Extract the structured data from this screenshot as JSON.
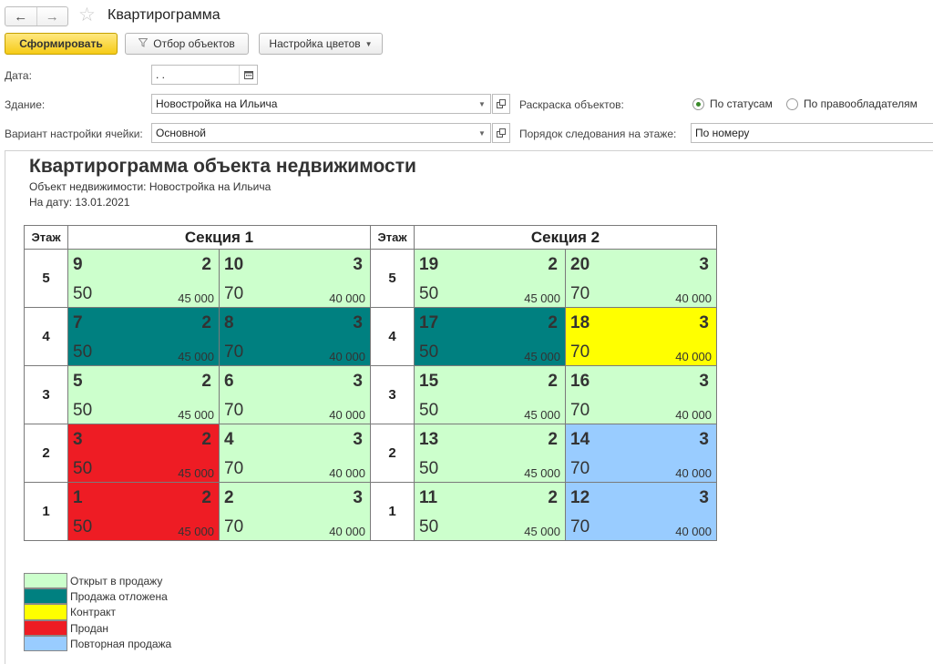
{
  "window": {
    "title": "Квартирограмма",
    "back_icon": "←",
    "forward_icon": "→",
    "favorite_icon": "☆"
  },
  "toolbar": {
    "generate_label": "Сформировать",
    "filter_label": "Отбор объектов",
    "colors_label": "Настройка цветов"
  },
  "form": {
    "date_label": "Дата:",
    "date_value": " .  .",
    "building_label": "Здание:",
    "building_value": "Новостройка на Ильича",
    "cell_variant_label": "Вариант настройки ячейки:",
    "cell_variant_value": "Основной",
    "coloring_label": "Раскраска объектов:",
    "coloring_options": [
      "По статусам",
      "По правообладателям"
    ],
    "coloring_selected": "По статусам",
    "order_label": "Порядок следования на этаже:",
    "order_value": "По номеру"
  },
  "report": {
    "title": "Квартирограмма объекта недвижимости",
    "object_line": "Объект недвижимости: Новостройка на Ильича",
    "date_line": "На дату: 13.01.2021",
    "floor_header": "Этаж",
    "colors": {
      "open": "#ccffcc",
      "delayed": "#008080",
      "contract": "#ffff00",
      "sold": "#ee1c24",
      "resale": "#99ccff"
    },
    "sections": [
      {
        "name": "Секция 1",
        "floors": [
          {
            "floor": "5",
            "apts": [
              {
                "num": "9",
                "rooms": "2",
                "area": "50",
                "price": "45 000",
                "status": "open"
              },
              {
                "num": "10",
                "rooms": "3",
                "area": "70",
                "price": "40 000",
                "status": "open"
              }
            ]
          },
          {
            "floor": "4",
            "apts": [
              {
                "num": "7",
                "rooms": "2",
                "area": "50",
                "price": "45 000",
                "status": "delayed"
              },
              {
                "num": "8",
                "rooms": "3",
                "area": "70",
                "price": "40 000",
                "status": "delayed"
              }
            ]
          },
          {
            "floor": "3",
            "apts": [
              {
                "num": "5",
                "rooms": "2",
                "area": "50",
                "price": "45 000",
                "status": "open"
              },
              {
                "num": "6",
                "rooms": "3",
                "area": "70",
                "price": "40 000",
                "status": "open"
              }
            ]
          },
          {
            "floor": "2",
            "apts": [
              {
                "num": "3",
                "rooms": "2",
                "area": "50",
                "price": "45 000",
                "status": "sold"
              },
              {
                "num": "4",
                "rooms": "3",
                "area": "70",
                "price": "40 000",
                "status": "open"
              }
            ]
          },
          {
            "floor": "1",
            "apts": [
              {
                "num": "1",
                "rooms": "2",
                "area": "50",
                "price": "45 000",
                "status": "sold"
              },
              {
                "num": "2",
                "rooms": "3",
                "area": "70",
                "price": "40 000",
                "status": "open"
              }
            ]
          }
        ]
      },
      {
        "name": "Секция 2",
        "floors": [
          {
            "floor": "5",
            "apts": [
              {
                "num": "19",
                "rooms": "2",
                "area": "50",
                "price": "45 000",
                "status": "open"
              },
              {
                "num": "20",
                "rooms": "3",
                "area": "70",
                "price": "40 000",
                "status": "open"
              }
            ]
          },
          {
            "floor": "4",
            "apts": [
              {
                "num": "17",
                "rooms": "2",
                "area": "50",
                "price": "45 000",
                "status": "delayed"
              },
              {
                "num": "18",
                "rooms": "3",
                "area": "70",
                "price": "40 000",
                "status": "contract"
              }
            ]
          },
          {
            "floor": "3",
            "apts": [
              {
                "num": "15",
                "rooms": "2",
                "area": "50",
                "price": "45 000",
                "status": "open"
              },
              {
                "num": "16",
                "rooms": "3",
                "area": "70",
                "price": "40 000",
                "status": "open"
              }
            ]
          },
          {
            "floor": "2",
            "apts": [
              {
                "num": "13",
                "rooms": "2",
                "area": "50",
                "price": "45 000",
                "status": "open"
              },
              {
                "num": "14",
                "rooms": "3",
                "area": "70",
                "price": "40 000",
                "status": "resale"
              }
            ]
          },
          {
            "floor": "1",
            "apts": [
              {
                "num": "11",
                "rooms": "2",
                "area": "50",
                "price": "45 000",
                "status": "open"
              },
              {
                "num": "12",
                "rooms": "3",
                "area": "70",
                "price": "40 000",
                "status": "resale"
              }
            ]
          }
        ]
      }
    ],
    "legend": [
      {
        "label": "Открыт в продажу",
        "status": "open"
      },
      {
        "label": "Продажа отложена",
        "status": "delayed"
      },
      {
        "label": "Контракт",
        "status": "contract"
      },
      {
        "label": "Продан",
        "status": "sold"
      },
      {
        "label": "Повторная продажа",
        "status": "resale"
      }
    ]
  }
}
